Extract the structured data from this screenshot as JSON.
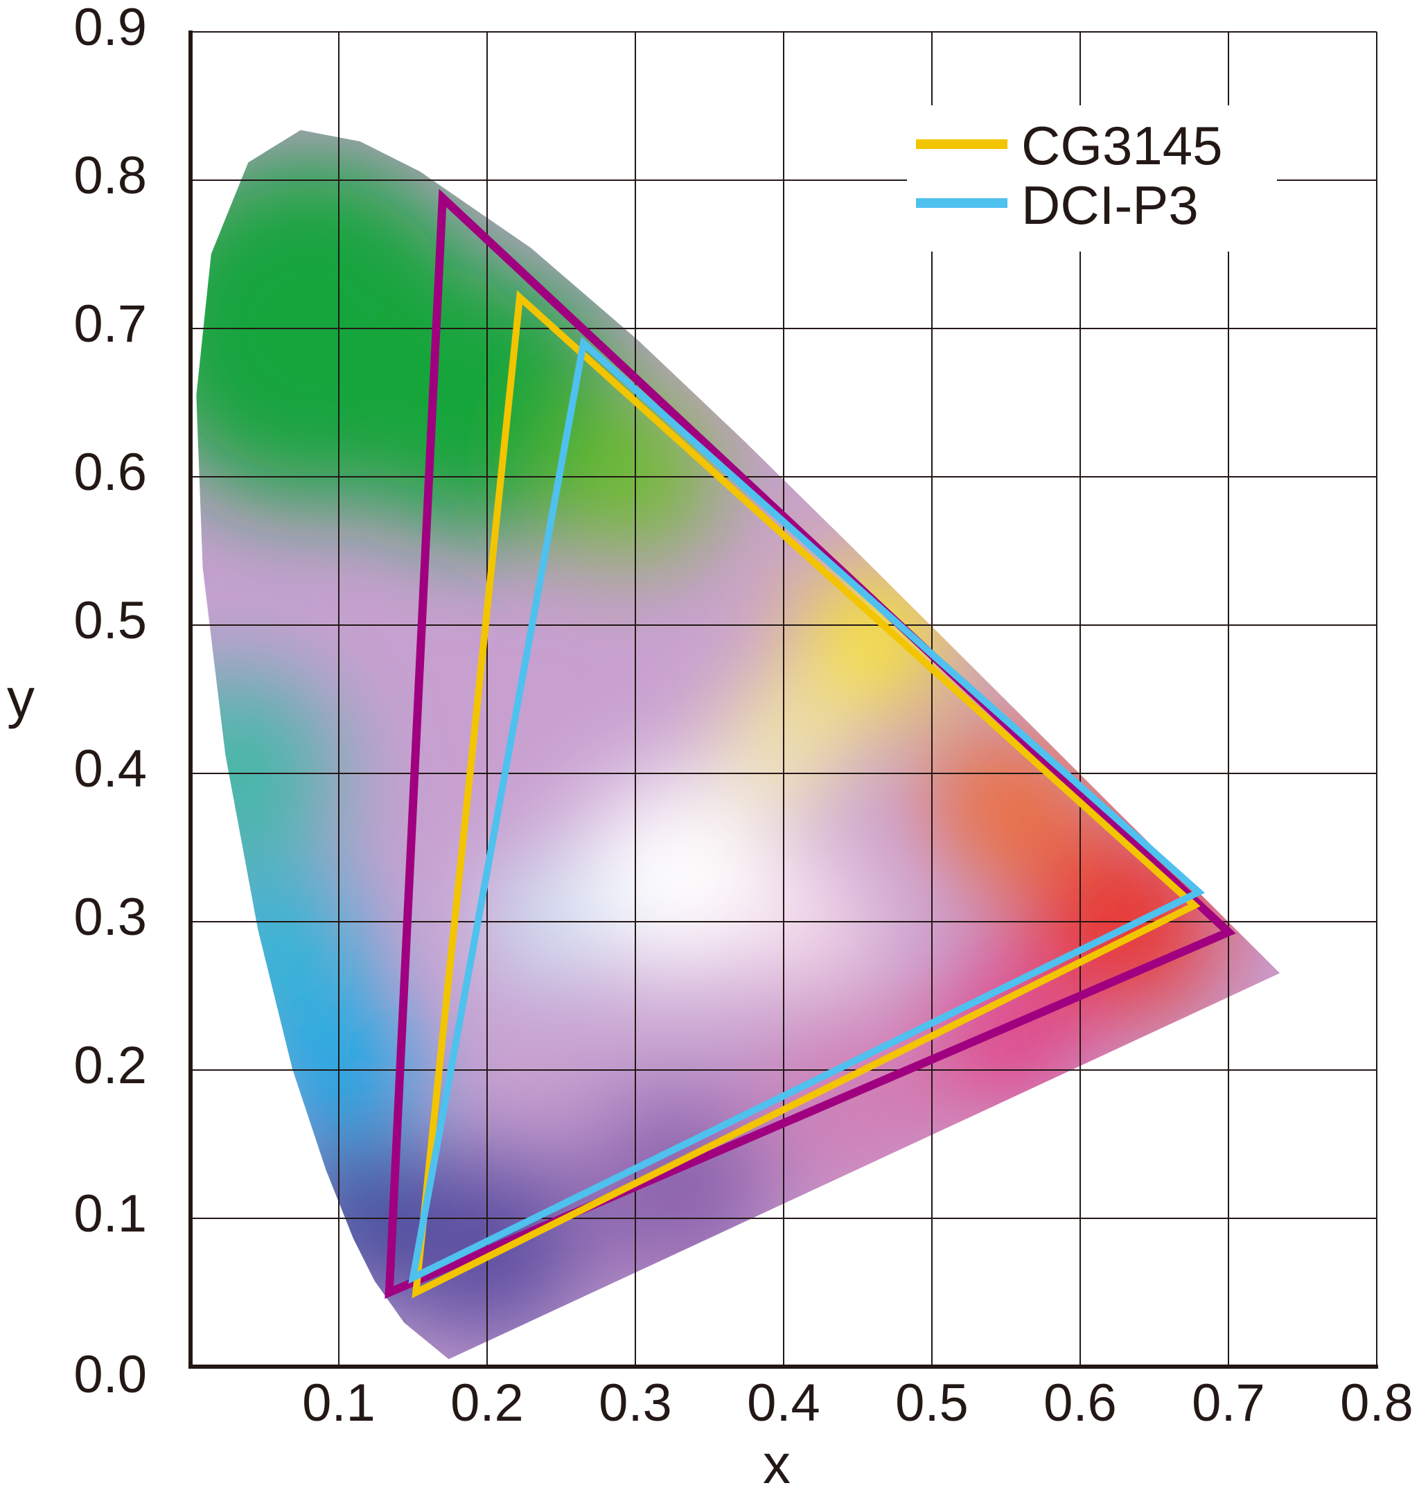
{
  "chart_data": {
    "type": "line",
    "title": "",
    "xlabel": "x",
    "ylabel": "y",
    "xlim": [
      0,
      0.8
    ],
    "ylim": [
      0,
      0.9
    ],
    "x_ticks": [
      "0.1",
      "0.2",
      "0.3",
      "0.4",
      "0.5",
      "0.6",
      "0.7",
      "0.8"
    ],
    "y_ticks": [
      "0.0",
      "0.1",
      "0.2",
      "0.3",
      "0.4",
      "0.5",
      "0.6",
      "0.7",
      "0.8",
      "0.9"
    ],
    "grid": true,
    "legend_position": "top-right",
    "spectral_locus": [
      [
        0.1741,
        0.005
      ],
      [
        0.144,
        0.0297
      ],
      [
        0.1241,
        0.0578
      ],
      [
        0.1096,
        0.0868
      ],
      [
        0.0913,
        0.1327
      ],
      [
        0.0687,
        0.2007
      ],
      [
        0.0454,
        0.295
      ],
      [
        0.0235,
        0.4127
      ],
      [
        0.0082,
        0.5384
      ],
      [
        0.0039,
        0.6548
      ],
      [
        0.0139,
        0.7502
      ],
      [
        0.0389,
        0.812
      ],
      [
        0.0743,
        0.8338
      ],
      [
        0.1142,
        0.8262
      ],
      [
        0.1547,
        0.8059
      ],
      [
        0.2296,
        0.7543
      ],
      [
        0.3016,
        0.6923
      ],
      [
        0.3731,
        0.6245
      ],
      [
        0.4441,
        0.5547
      ],
      [
        0.5125,
        0.4866
      ],
      [
        0.5752,
        0.4242
      ],
      [
        0.627,
        0.3725
      ],
      [
        0.6915,
        0.3083
      ],
      [
        0.7347,
        0.2653
      ]
    ],
    "series": [
      {
        "color": "#a0007f",
        "points": [
          [
            0.17,
            0.788
          ],
          [
            0.7,
            0.293
          ],
          [
            0.134,
            0.05
          ]
        ]
      },
      {
        "name": "CG3145",
        "color": "#f2c500",
        "points": [
          [
            0.222,
            0.721
          ],
          [
            0.677,
            0.311
          ],
          [
            0.152,
            0.05
          ]
        ]
      },
      {
        "name": "DCI-P3",
        "color": "#4fc1ee",
        "points": [
          [
            0.265,
            0.69
          ],
          [
            0.68,
            0.32
          ],
          [
            0.15,
            0.06
          ]
        ]
      }
    ]
  }
}
